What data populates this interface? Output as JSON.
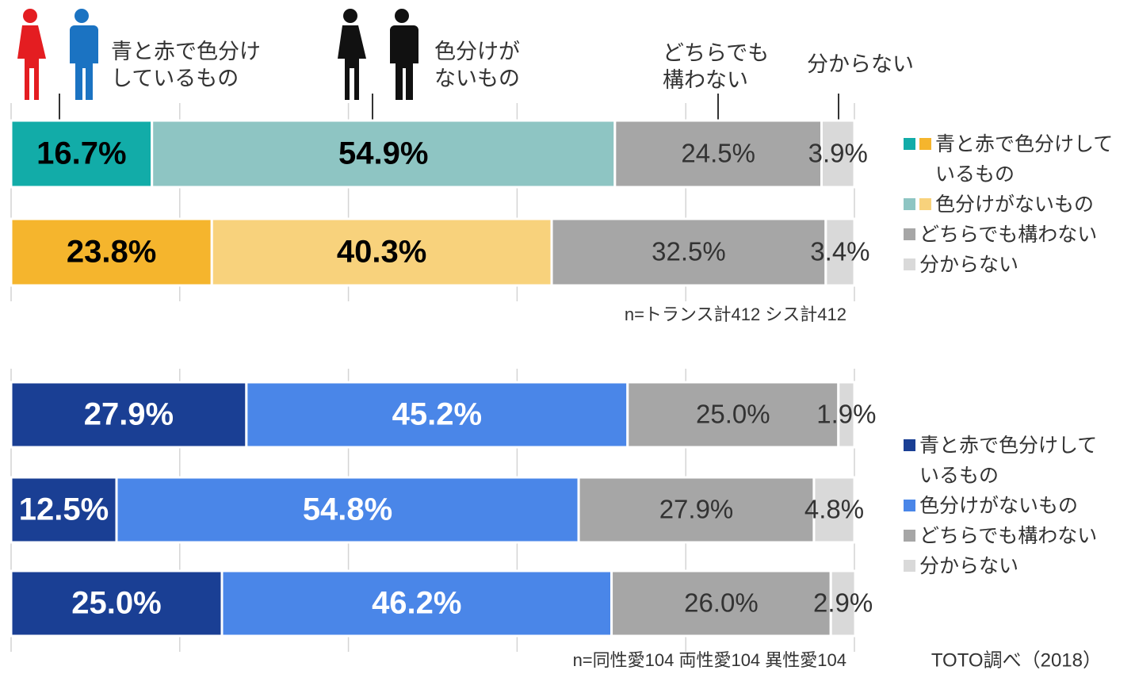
{
  "chart_data": [
    {
      "type": "stacked-bar-horizontal",
      "annotations": [
        "青と赤で色分けしているもの",
        "色分けがないもの",
        "どちらでも構わない",
        "分からない"
      ],
      "categories": [
        null,
        null
      ],
      "xlim": [
        0,
        100
      ],
      "xticks": [
        0,
        20,
        40,
        60,
        80,
        100
      ],
      "grid": true,
      "series": [
        {
          "name": "青と赤で色分けしているもの",
          "colors": [
            "#12aca8",
            "#f5b52d"
          ],
          "label_color": "#000000",
          "values": [
            16.7,
            23.8
          ],
          "value_labels": [
            "16.7%",
            "23.8%"
          ]
        },
        {
          "name": "色分けがないもの",
          "colors": [
            "#8ec5c3",
            "#f8d27c"
          ],
          "label_color": "#000000",
          "values": [
            54.9,
            40.3
          ],
          "value_labels": [
            "54.9%",
            "40.3%"
          ]
        },
        {
          "name": "どちらでも構わない",
          "colors": [
            "#a6a6a6",
            "#a6a6a6"
          ],
          "label_color": "#333333",
          "values": [
            24.5,
            32.5
          ],
          "value_labels": [
            "24.5%",
            "32.5%"
          ]
        },
        {
          "name": "分からない",
          "colors": [
            "#d9d9d9",
            "#d9d9d9"
          ],
          "label_color": "#333333",
          "values": [
            3.9,
            3.4
          ],
          "value_labels": [
            "3.9%",
            "3.4%"
          ]
        }
      ],
      "note": "n=トランス計412 シス計412"
    },
    {
      "type": "stacked-bar-horizontal",
      "categories": [
        null,
        null,
        null
      ],
      "xlim": [
        0,
        100
      ],
      "xticks": [
        0,
        20,
        40,
        60,
        80,
        100
      ],
      "grid": true,
      "series": [
        {
          "name": "青と赤で色分けしているもの",
          "color": "#1a3f94",
          "label_color": "#ffffff",
          "values": [
            27.9,
            12.5,
            25.0
          ],
          "value_labels": [
            "27.9%",
            "12.5%",
            "25.0%"
          ]
        },
        {
          "name": "色分けがないもの",
          "color": "#4a86e8",
          "label_color": "#ffffff",
          "values": [
            45.2,
            54.8,
            46.2
          ],
          "value_labels": [
            "45.2%",
            "54.8%",
            "46.2%"
          ]
        },
        {
          "name": "どちらでも構わない",
          "color": "#a6a6a6",
          "label_color": "#333333",
          "values": [
            25.0,
            27.9,
            26.0
          ],
          "value_labels": [
            "25.0%",
            "27.9%",
            "26.0%"
          ]
        },
        {
          "name": "分からない",
          "color": "#d9d9d9",
          "label_color": "#333333",
          "values": [
            1.9,
            4.8,
            2.9
          ],
          "value_labels": [
            "1.9%",
            "4.8%",
            "2.9%"
          ]
        }
      ],
      "note": "n=同性愛104 両性愛104 異性愛104",
      "source": "TOTO調べ（2018）"
    }
  ]
}
